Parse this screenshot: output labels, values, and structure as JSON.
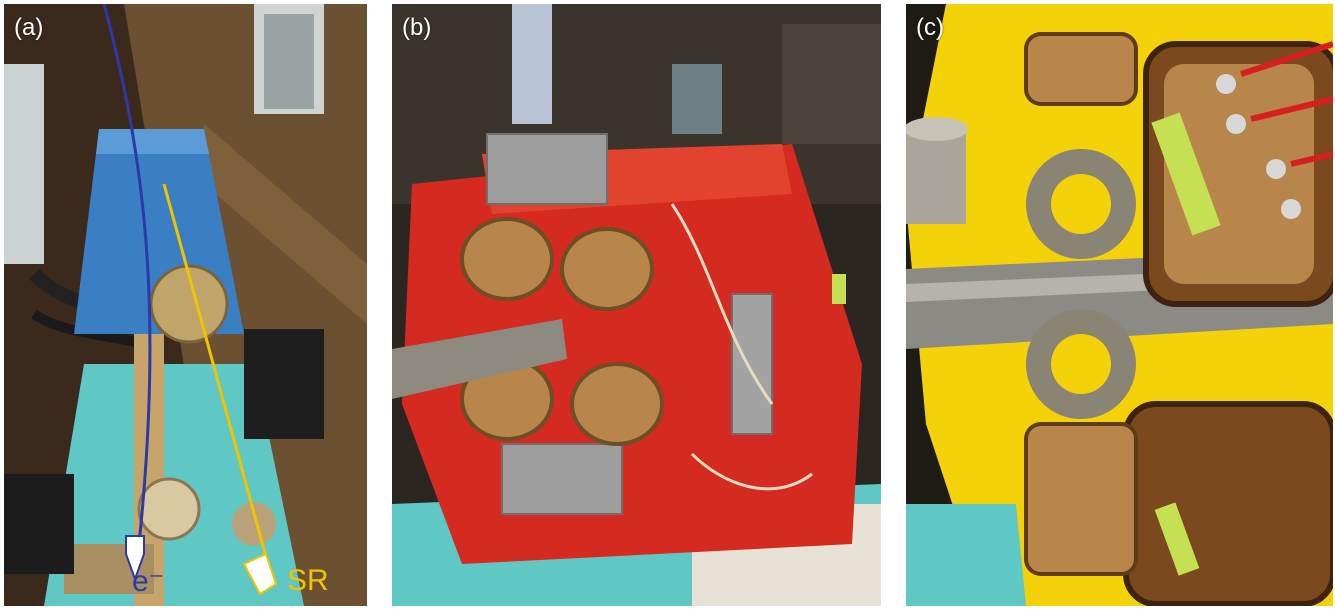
{
  "panels": [
    {
      "label": "(a)"
    },
    {
      "label": "(b)"
    },
    {
      "label": "(c)"
    }
  ],
  "annotations": {
    "electron_label": "e⁻",
    "sr_label": "SR"
  },
  "colors": {
    "electron_beam": "#2b3aa8",
    "sr_beam": "#f2c400",
    "dipole_blue": "#3a7fc4",
    "magnet_red": "#d42a1f",
    "magnet_yellow": "#f3d20a",
    "girder_cyan": "#5fc8c4",
    "coil_copper": "#b8864a"
  }
}
